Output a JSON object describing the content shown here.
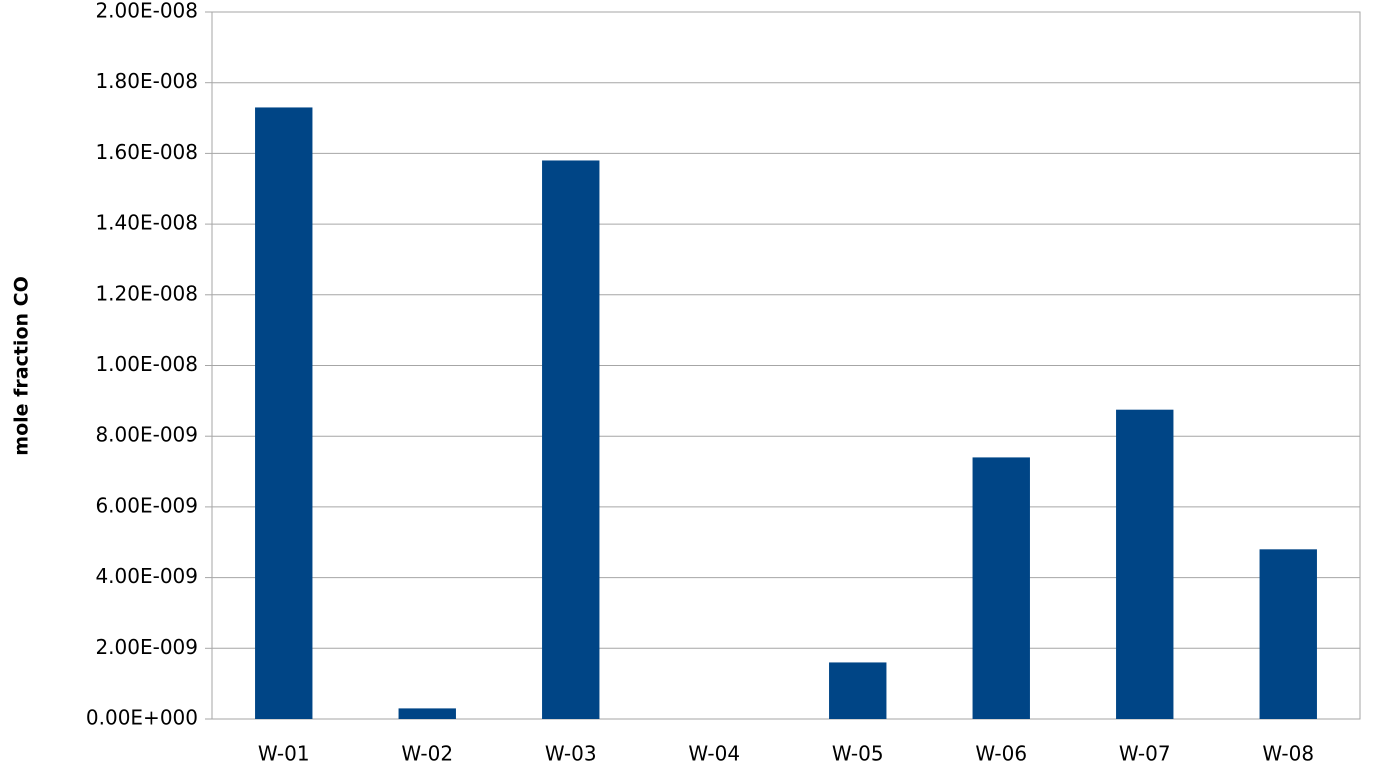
{
  "chart_data": {
    "type": "bar",
    "y_label": "mole fraction CO",
    "categories": [
      "W-01",
      "W-02",
      "W-03",
      "W-04",
      "W-05",
      "W-06",
      "W-07",
      "W-08"
    ],
    "values": [
      1.73e-08,
      3e-10,
      1.58e-08,
      0,
      1.6e-09,
      7.4e-09,
      8.75e-09,
      4.8e-09
    ],
    "color": "#004586",
    "ylim": [
      0,
      2e-08
    ],
    "yticks": [
      {
        "value": 0,
        "label": "0.00E+000"
      },
      {
        "value": 2e-09,
        "label": "2.00E-009"
      },
      {
        "value": 4e-09,
        "label": "4.00E-009"
      },
      {
        "value": 6e-09,
        "label": "6.00E-009"
      },
      {
        "value": 8e-09,
        "label": "8.00E-009"
      },
      {
        "value": 1e-08,
        "label": "1.00E-008"
      },
      {
        "value": 1.2e-08,
        "label": "1.20E-008"
      },
      {
        "value": 1.4e-08,
        "label": "1.40E-008"
      },
      {
        "value": 1.6e-08,
        "label": "1.60E-008"
      },
      {
        "value": 1.8e-08,
        "label": "1.80E-008"
      },
      {
        "value": 2e-08,
        "label": "2.00E-008"
      }
    ],
    "grid": true
  }
}
